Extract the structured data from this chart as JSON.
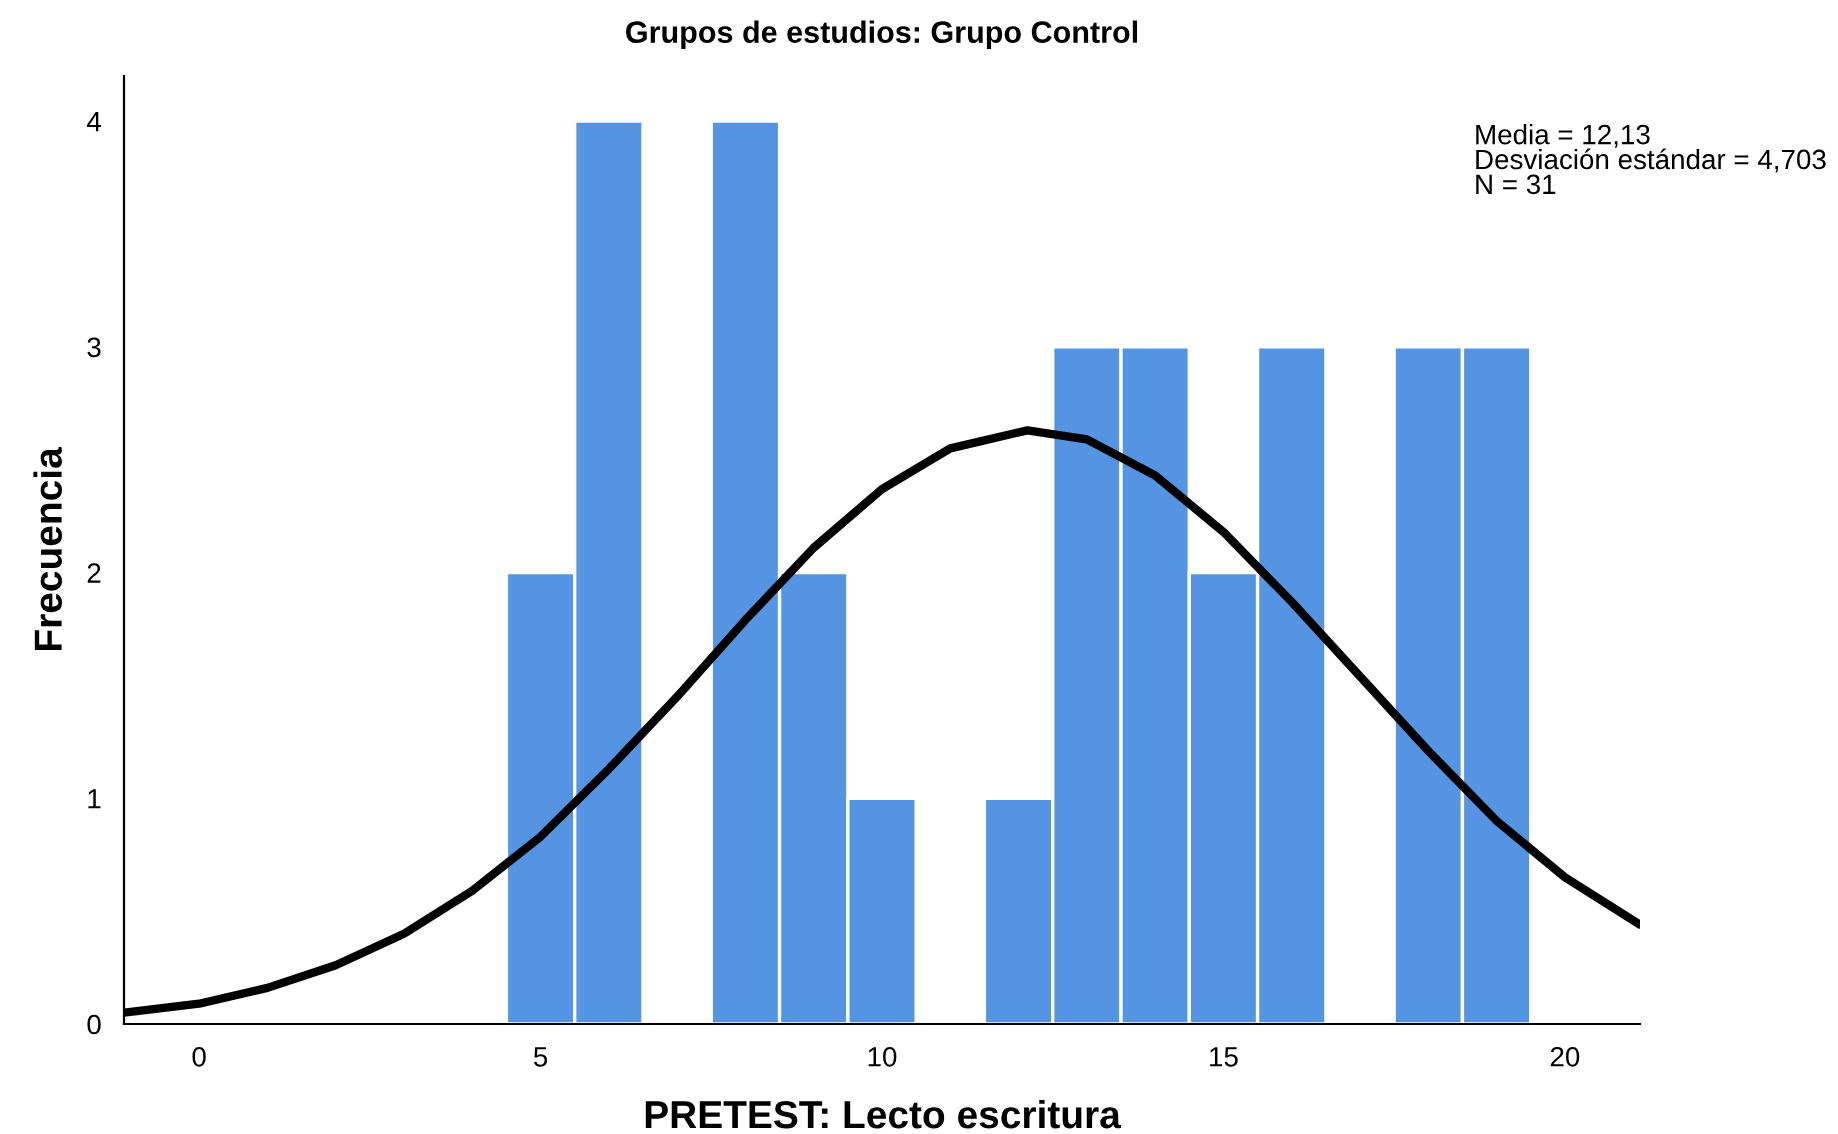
{
  "chart_data": {
    "type": "histogram",
    "title": "Grupos de estudios: Grupo Control",
    "xlabel": "PRETEST: Lecto escritura",
    "ylabel": "Frecuencia",
    "bins": [
      4.5,
      5.5,
      6.5,
      7.5,
      8.5,
      9.5,
      10.5,
      11.5,
      12.5,
      13.5,
      14.5,
      15.5,
      16.5,
      17.5,
      18.5,
      19.5
    ],
    "values": [
      2,
      4,
      0,
      4,
      2,
      1,
      0,
      1,
      3,
      3,
      2,
      3,
      0,
      3,
      3
    ],
    "color": "#5594e2",
    "series": [
      {
        "type": "line",
        "color": "#000000",
        "x": [
          -1.1,
          0,
          1,
          2,
          3,
          4,
          5,
          6,
          7,
          8,
          9,
          10,
          11,
          12.13,
          13,
          14,
          15,
          16,
          17,
          18,
          19,
          20,
          21.1
        ],
        "values": [
          0.05,
          0.09,
          0.16,
          0.26,
          0.4,
          0.59,
          0.83,
          1.13,
          1.45,
          1.79,
          2.11,
          2.37,
          2.55,
          2.63,
          2.59,
          2.43,
          2.18,
          1.87,
          1.54,
          1.21,
          0.9,
          0.65,
          0.44
        ]
      }
    ],
    "annotations": [
      "Media = 12,13\nDesviación estándar = 4,703\nN = 31"
    ],
    "xlim": [
      -1.1,
      21.1
    ],
    "ylim": [
      0,
      4.2
    ],
    "xticks": [
      0,
      5,
      10,
      15,
      20
    ],
    "yticks": [
      0,
      1,
      2,
      3,
      4
    ],
    "grid": false,
    "legend": false
  }
}
